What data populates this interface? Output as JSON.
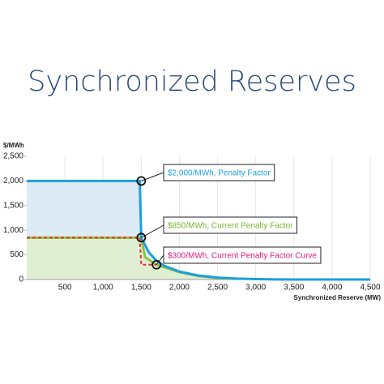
{
  "chart_data": {
    "type": "line",
    "title": "Synchronized Reserves",
    "y_label": "$/MWh",
    "x_label": "Synchronized Reserve (MW)",
    "xlim": [
      0,
      4500
    ],
    "ylim": [
      0,
      2500
    ],
    "xticks": [
      500,
      {
        "value": 1000,
        "label": "1,000"
      },
      {
        "value": 1500,
        "label": "1,500"
      },
      {
        "value": 2000,
        "label": "2,000"
      },
      {
        "value": 2500,
        "label": "2,500"
      },
      {
        "value": 3000,
        "label": "3,000"
      },
      {
        "value": 3500,
        "label": "3,500"
      },
      {
        "value": 4000,
        "label": "4,000"
      },
      {
        "value": 4500,
        "label": "4,500"
      }
    ],
    "yticks": [
      0,
      500,
      {
        "value": 1000,
        "label": "1,000"
      },
      {
        "value": 1500,
        "label": "1,500"
      },
      {
        "value": 2000,
        "label": "2,000"
      },
      {
        "value": 2500,
        "label": "2,500"
      }
    ],
    "grid": "x",
    "series": [
      {
        "color": "#1e9fdc",
        "fill": "#d7e8f6",
        "dashed": false,
        "x": [
          0,
          1480,
          1500,
          1600,
          1700,
          1800,
          2000,
          2250,
          2500,
          2750,
          3000,
          3250,
          3500,
          4500
        ],
        "values": [
          2000,
          2000,
          850,
          550,
          380,
          280,
          160,
          80,
          40,
          18,
          8,
          3,
          1,
          0
        ]
      },
      {
        "color": "#8cc63f",
        "fill": "#e0eecd",
        "dashed": false,
        "x": [
          0,
          1500,
          1550,
          1700,
          2000,
          2250,
          2500,
          2750
        ],
        "values": [
          850,
          850,
          450,
          300,
          150,
          70,
          30,
          10
        ]
      },
      {
        "color": "#e2312d",
        "fill": null,
        "dashed": true,
        "x": [
          0,
          1480,
          1500,
          1700
        ],
        "values": [
          850,
          850,
          300,
          300
        ]
      }
    ],
    "annotations": [
      {
        "text": "$2,000/MWh, Penalty Factor",
        "x": 1500,
        "y": 2000,
        "color": "#1e9fdc"
      },
      {
        "text": "$850/MWh, Current Penalty Factor",
        "x": 1500,
        "y": 850,
        "color": "#7ab52f"
      },
      {
        "text": "$300/MWh, Current Penalty Factor Curve",
        "x": 1700,
        "y": 300,
        "color": "#e0197d"
      }
    ]
  }
}
